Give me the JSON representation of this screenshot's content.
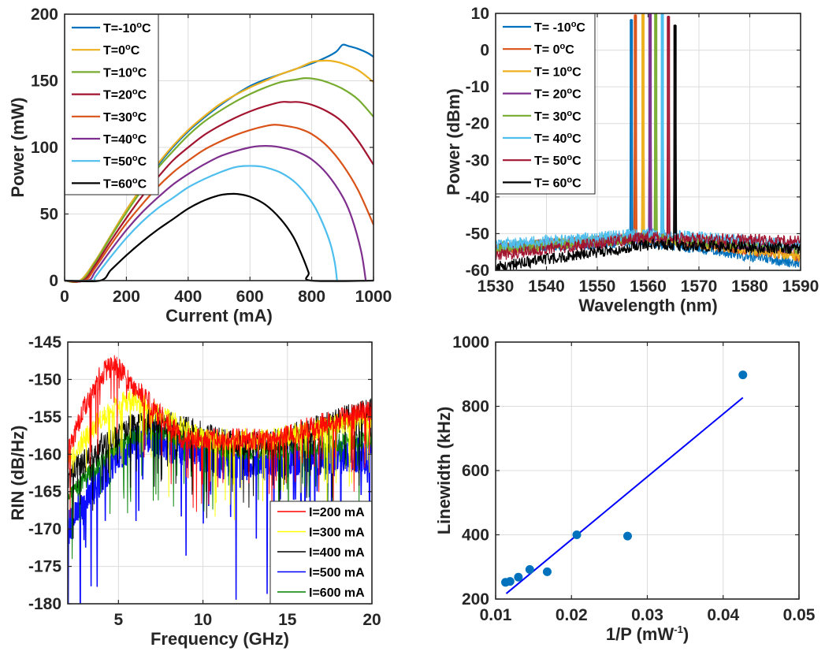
{
  "chart_data": [
    {
      "id": "pi",
      "type": "line",
      "title": "",
      "xlabel": "Current (mA)",
      "ylabel": "Power (mW)",
      "xlim": [
        0,
        1000
      ],
      "ylim": [
        0,
        200
      ],
      "xticks": [
        0,
        200,
        400,
        600,
        800,
        1000
      ],
      "yticks": [
        0,
        50,
        100,
        150,
        200
      ],
      "grid": true,
      "legend_position": "top-left",
      "series": [
        {
          "name": "T=-10°C",
          "label_main": "T=-10",
          "color": "#0072BD",
          "x": [
            0,
            50,
            100,
            150,
            200,
            250,
            300,
            350,
            400,
            450,
            500,
            550,
            600,
            650,
            700,
            750,
            800,
            850,
            880,
            900,
            920,
            950,
            980,
            1000
          ],
          "y": [
            0,
            0,
            15,
            34,
            53,
            70,
            86,
            100,
            112,
            122,
            131,
            139,
            146,
            151,
            155,
            159,
            163,
            168,
            172,
            177,
            176,
            174,
            171,
            168
          ]
        },
        {
          "name": "T=0°C",
          "label_main": "T=0",
          "color": "#EDB120",
          "x": [
            0,
            50,
            100,
            150,
            200,
            250,
            300,
            350,
            400,
            450,
            500,
            550,
            600,
            650,
            700,
            750,
            800,
            830,
            860,
            900,
            950,
            1000
          ],
          "y": [
            0,
            0,
            15,
            34,
            53,
            70,
            87,
            101,
            113,
            123,
            132,
            139,
            145,
            150,
            155,
            159,
            164,
            165,
            165,
            163,
            158,
            149
          ]
        },
        {
          "name": "T=10°C",
          "label_main": "T=10",
          "color": "#77AC30",
          "x": [
            0,
            55,
            100,
            150,
            200,
            250,
            300,
            350,
            400,
            450,
            500,
            550,
            600,
            650,
            700,
            750,
            780,
            820,
            850,
            900,
            950,
            1000
          ],
          "y": [
            0,
            0,
            14,
            33,
            51,
            68,
            84,
            97,
            109,
            119,
            127,
            134,
            140,
            145,
            149,
            151,
            152,
            151,
            149,
            144,
            136,
            123
          ]
        },
        {
          "name": "T=20°C",
          "label_main": "T=20",
          "color": "#A2142F",
          "x": [
            0,
            60,
            100,
            150,
            200,
            250,
            300,
            350,
            400,
            450,
            500,
            550,
            600,
            650,
            700,
            730,
            760,
            800,
            850,
            900,
            950,
            1000
          ],
          "y": [
            0,
            0,
            12,
            30,
            47,
            63,
            77,
            90,
            100,
            109,
            116,
            122,
            127,
            131,
            134,
            134,
            134,
            132,
            127,
            119,
            105,
            87
          ]
        },
        {
          "name": "T=30°C",
          "label_main": "T=30",
          "color": "#D95319",
          "x": [
            0,
            65,
            100,
            150,
            200,
            250,
            300,
            350,
            400,
            450,
            500,
            550,
            600,
            650,
            680,
            720,
            760,
            800,
            850,
            900,
            950,
            1000
          ],
          "y": [
            0,
            0,
            10,
            27,
            43,
            57,
            70,
            81,
            90,
            98,
            104,
            109,
            113,
            116,
            117,
            116,
            114,
            110,
            101,
            87,
            68,
            42
          ]
        },
        {
          "name": "T=40°C",
          "label_main": "T=40",
          "color": "#7E2F8E",
          "x": [
            0,
            75,
            100,
            150,
            200,
            250,
            300,
            350,
            400,
            450,
            500,
            550,
            600,
            630,
            670,
            700,
            750,
            800,
            850,
            900,
            930,
            960,
            975
          ],
          "y": [
            0,
            0,
            7,
            23,
            38,
            51,
            62,
            72,
            80,
            87,
            93,
            97,
            100,
            101,
            101,
            100,
            97,
            91,
            80,
            63,
            47,
            22,
            0
          ]
        },
        {
          "name": "T=50°C",
          "label_main": "T=50",
          "color": "#4DBEEE",
          "x": [
            0,
            90,
            100,
            150,
            200,
            250,
            300,
            350,
            400,
            450,
            500,
            550,
            580,
            620,
            650,
            700,
            750,
            800,
            830,
            860,
            875,
            882
          ],
          "y": [
            0,
            0,
            3,
            18,
            32,
            44,
            54,
            62,
            70,
            76,
            81,
            85,
            86,
            86,
            85,
            81,
            73,
            59,
            46,
            28,
            13,
            0
          ]
        },
        {
          "name": "T=60°C",
          "label_main": "T=60",
          "color": "#000000",
          "x": [
            0,
            115,
            150,
            200,
            250,
            300,
            350,
            400,
            450,
            500,
            530,
            560,
            600,
            650,
            700,
            740,
            770,
            790,
            798,
            1000
          ],
          "y": [
            0,
            0,
            8,
            19,
            29,
            38,
            46,
            54,
            60,
            64,
            65,
            65,
            63,
            57,
            46,
            33,
            18,
            6,
            0,
            0
          ]
        }
      ]
    },
    {
      "id": "spectrum",
      "type": "line",
      "title": "",
      "xlabel": "Wavelength (nm)",
      "ylabel": "Power (dBm)",
      "xlim": [
        1530,
        1590
      ],
      "ylim": [
        -60,
        10
      ],
      "xticks": [
        1530,
        1540,
        1550,
        1560,
        1570,
        1580,
        1590
      ],
      "yticks": [
        -60,
        -50,
        -40,
        -30,
        -20,
        -10,
        0,
        10
      ],
      "grid": true,
      "legend_position": "top-left",
      "series": [
        {
          "name": "T= -10°C",
          "label_main": "T= -10",
          "color": "#0072BD",
          "peak_wavelength": 1556.7,
          "peak_power": 8.3,
          "floor_start": -54,
          "floor_mid": -52,
          "floor_end": -58
        },
        {
          "name": "T= 0°C",
          "label_main": "T= 0",
          "color": "#D95319",
          "peak_wavelength": 1557.5,
          "peak_power": 9.6,
          "floor_start": -54,
          "floor_mid": -51,
          "floor_end": -56
        },
        {
          "name": "T= 10°C",
          "label_main": "T= 10",
          "color": "#EDB120",
          "peak_wavelength": 1559.0,
          "peak_power": 10.0,
          "floor_start": -54,
          "floor_mid": -51,
          "floor_end": -56
        },
        {
          "name": "T= 20°C",
          "label_main": "T= 20",
          "color": "#7E2F8E",
          "peak_wavelength": 1560.4,
          "peak_power": 10.7,
          "floor_start": -54,
          "floor_mid": -51,
          "floor_end": -54
        },
        {
          "name": "T= 30°C",
          "label_main": "T= 30",
          "color": "#77AC30",
          "peak_wavelength": 1561.5,
          "peak_power": 10.1,
          "floor_start": -54,
          "floor_mid": -51,
          "floor_end": -54
        },
        {
          "name": "T= 40°C",
          "label_main": "T= 40",
          "color": "#4DBEEE",
          "peak_wavelength": 1562.8,
          "peak_power": 10.5,
          "floor_start": -53,
          "floor_mid": -50,
          "floor_end": -53
        },
        {
          "name": "T= 50°C",
          "label_main": "T= 50",
          "color": "#A2142F",
          "peak_wavelength": 1564.0,
          "peak_power": 9.2,
          "floor_start": -56,
          "floor_mid": -51,
          "floor_end": -52
        },
        {
          "name": "T= 60°C",
          "label_main": "T= 60",
          "color": "#000000",
          "peak_wavelength": 1565.3,
          "peak_power": 6.8,
          "floor_start": -59,
          "floor_mid": -53,
          "floor_end": -54
        }
      ]
    },
    {
      "id": "rin",
      "type": "line",
      "title": "",
      "xlabel": "Frequency (GHz)",
      "ylabel": "RIN (dB/Hz)",
      "xlim": [
        2,
        20
      ],
      "ylim": [
        -180,
        -145
      ],
      "xticks": [
        5,
        10,
        15,
        20
      ],
      "yticks": [
        -180,
        -175,
        -170,
        -165,
        -160,
        -155,
        -150,
        -145
      ],
      "grid": true,
      "legend_position": "bottom-right",
      "series": [
        {
          "name": "I=200 mA",
          "color": "#FF0000",
          "peak_freq": 4.8,
          "peak_rin": -148.2,
          "start_rin": -160,
          "floor_rin": -158,
          "end_rin": -154,
          "noise": 3
        },
        {
          "name": "I=300 mA",
          "color": "#FFFF00",
          "peak_freq": 6.0,
          "peak_rin": -152.8,
          "start_rin": -161,
          "floor_rin": -158,
          "end_rin": -155,
          "noise": 3
        },
        {
          "name": "I=400 mA",
          "color": "#000000",
          "peak_freq": 7.5,
          "peak_rin": -155.5,
          "start_rin": -163,
          "floor_rin": -158.5,
          "end_rin": -154,
          "noise": 3.5
        },
        {
          "name": "I=500 mA",
          "color": "#0000FF",
          "peak_freq": 7.0,
          "peak_rin": -158.0,
          "start_rin": -170,
          "floor_rin": -161,
          "end_rin": -160,
          "noise": 5
        },
        {
          "name": "I=600 mA",
          "color": "#008000",
          "peak_freq": 7.3,
          "peak_rin": -156.8,
          "start_rin": -166,
          "floor_rin": -159.5,
          "end_rin": -158,
          "noise": 2.5
        }
      ]
    },
    {
      "id": "linewidth",
      "type": "scatter",
      "title": "",
      "xlabel_main": "1/P (mW",
      "xlabel_sup": "-1",
      "xlabel_end": ")",
      "ylabel": "Linewidth (kHz)",
      "xlim": [
        0.01,
        0.05
      ],
      "ylim": [
        200,
        1000
      ],
      "xticks": [
        0.01,
        0.02,
        0.03,
        0.04,
        0.05
      ],
      "xtick_labels": [
        "0.01",
        "0.02",
        "0.03",
        "0.04",
        "0.05"
      ],
      "yticks": [
        200,
        400,
        600,
        800,
        1000
      ],
      "grid": true,
      "points_color": "#0072BD",
      "fit_color": "#0000FF",
      "points": [
        {
          "x": 0.0113,
          "y": 252
        },
        {
          "x": 0.0119,
          "y": 255
        },
        {
          "x": 0.013,
          "y": 268
        },
        {
          "x": 0.0145,
          "y": 292
        },
        {
          "x": 0.0168,
          "y": 285
        },
        {
          "x": 0.0207,
          "y": 400
        },
        {
          "x": 0.0274,
          "y": 396
        },
        {
          "x": 0.0426,
          "y": 898
        }
      ],
      "fit_line": {
        "x": [
          0.0114,
          0.0426
        ],
        "y": [
          217,
          827
        ]
      }
    }
  ]
}
